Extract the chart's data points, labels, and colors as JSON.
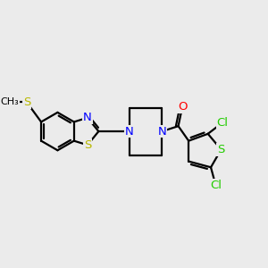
{
  "background_color": "#ebebeb",
  "atom_colors": {
    "C": "#000000",
    "N": "#0000ff",
    "O": "#ff0000",
    "S_yellow": "#b8b800",
    "S_green": "#22cc00",
    "Cl": "#22cc00"
  },
  "bond_color": "#000000",
  "bond_width": 1.6,
  "font_size_atom": 9.5,
  "xlim": [
    0,
    10
  ],
  "ylim": [
    0,
    10
  ],
  "figsize": [
    3.0,
    3.0
  ],
  "dpi": 100
}
